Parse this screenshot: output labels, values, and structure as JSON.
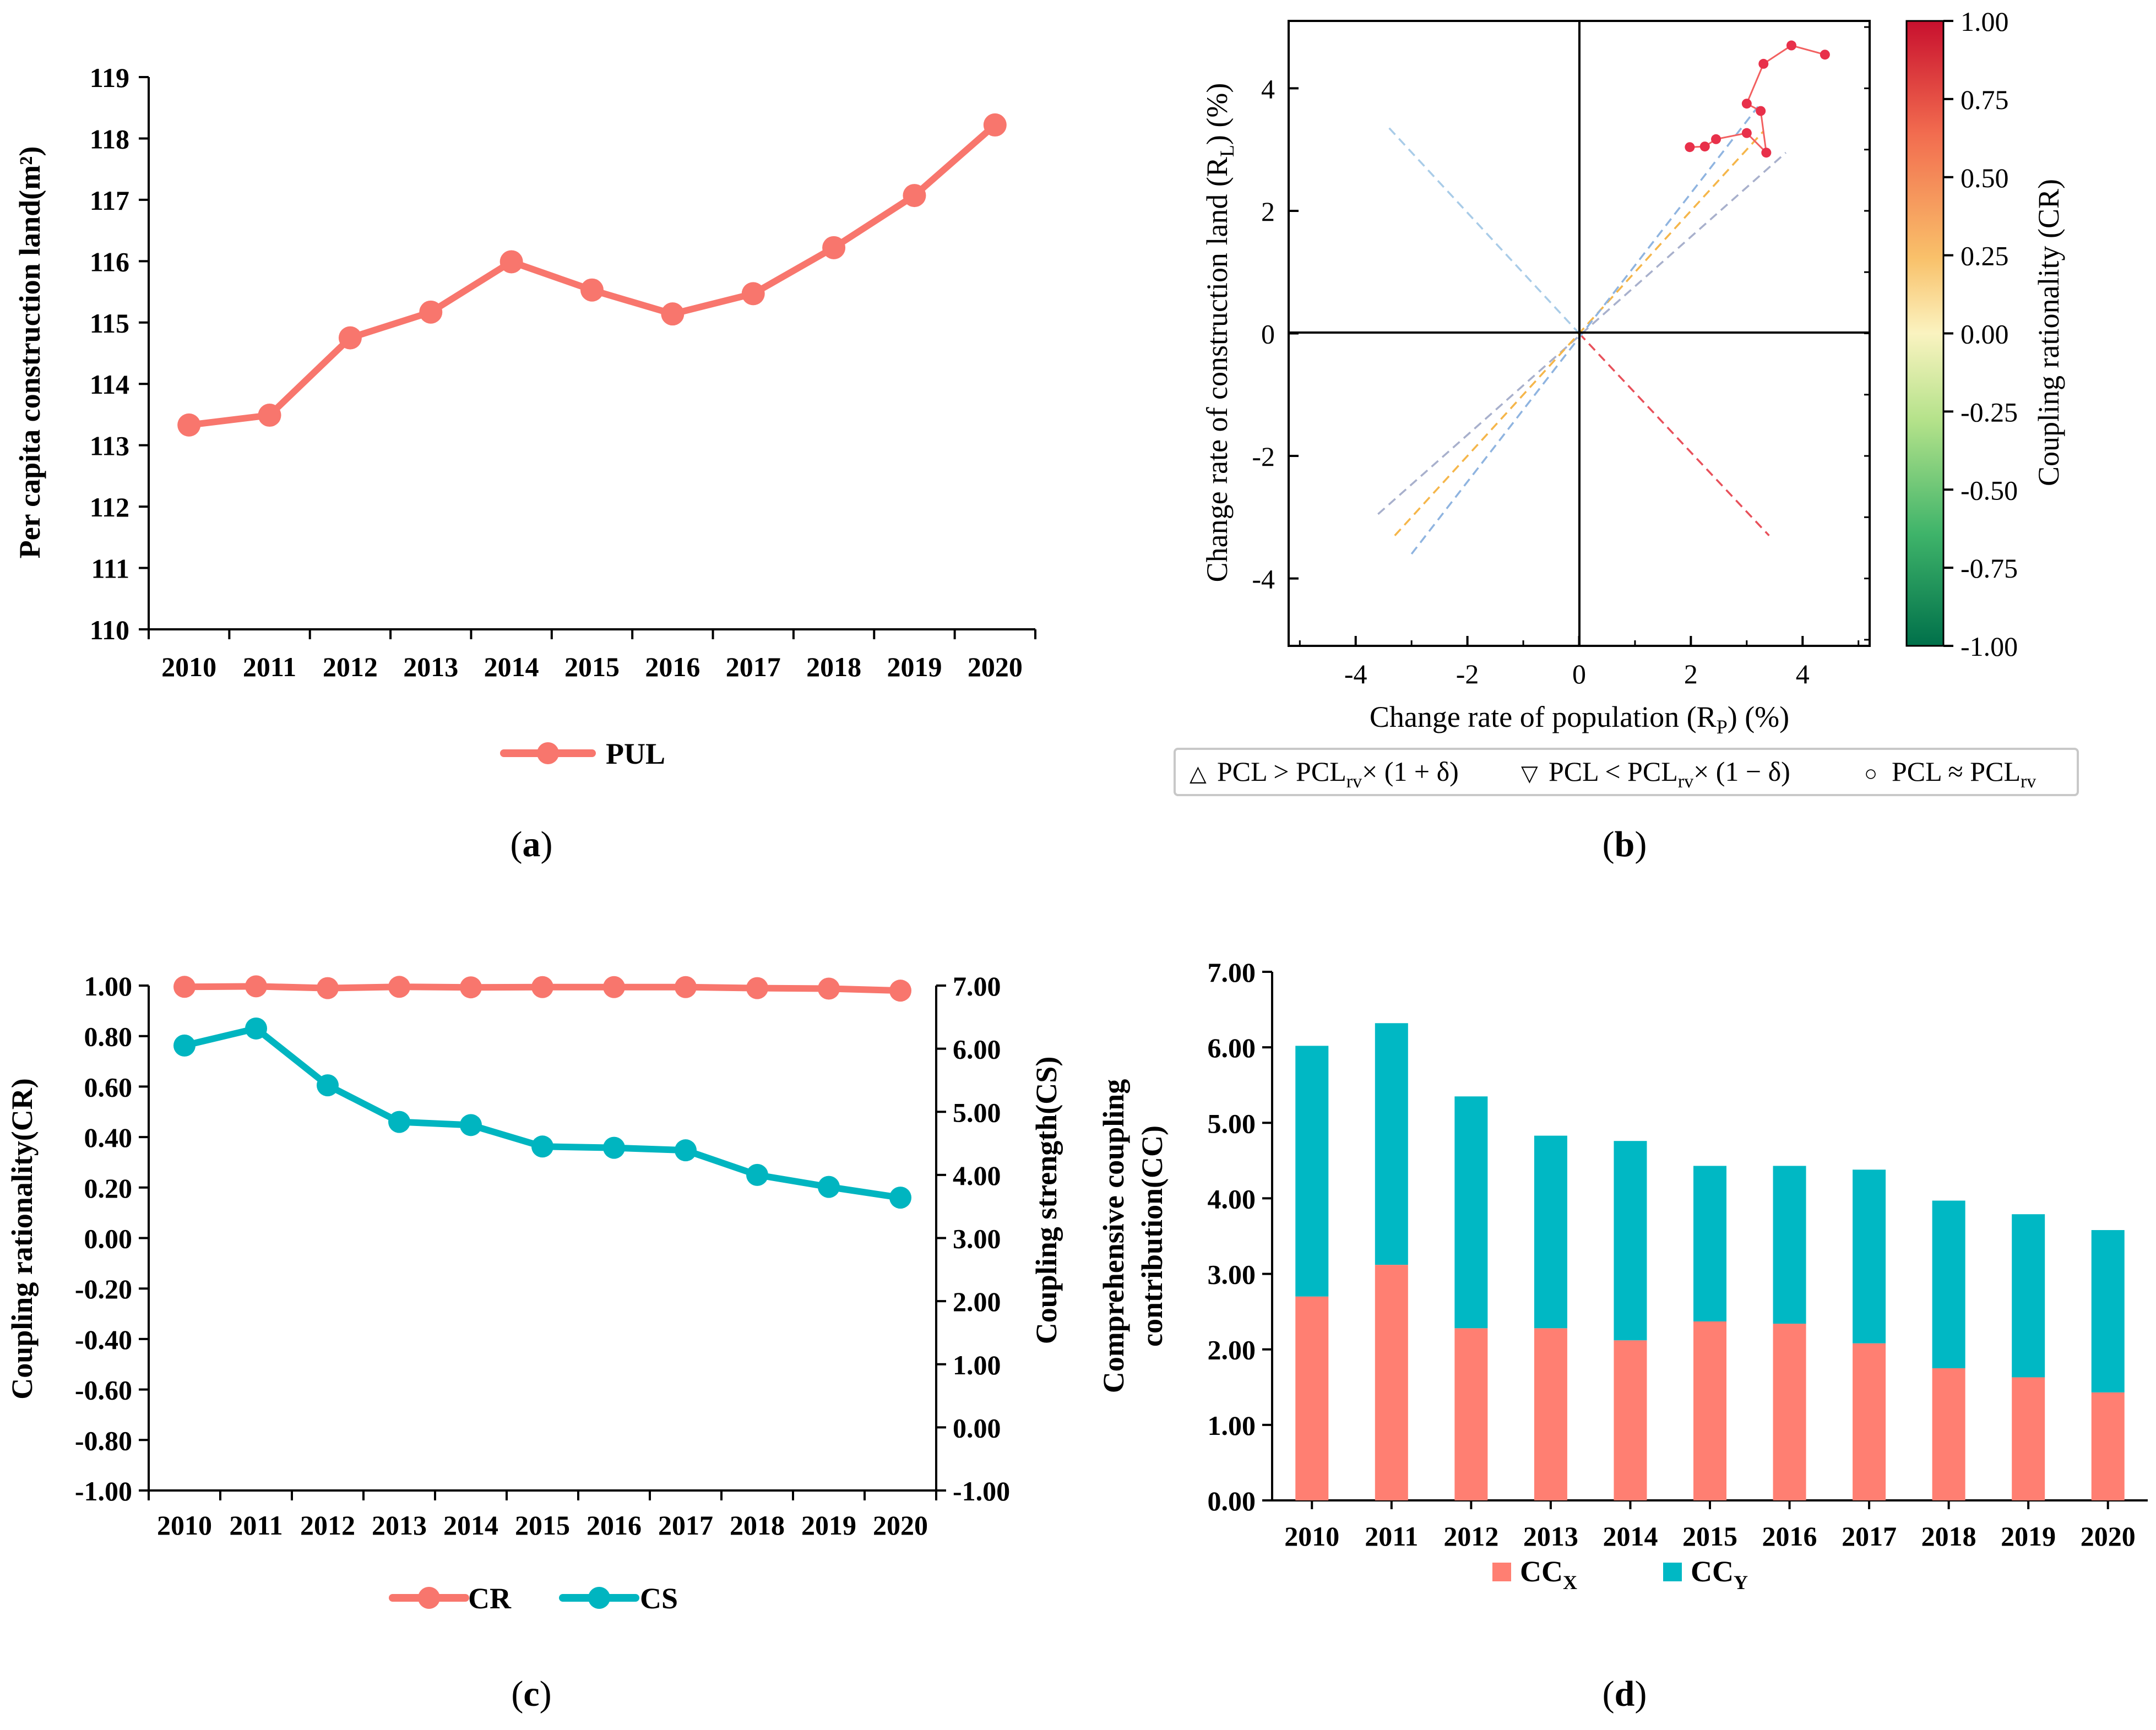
{
  "colors": {
    "cr": "#F8766D",
    "cs": "#00B5C0",
    "ccx": "#FF7F72",
    "ccy": "#00B8C4",
    "line_b": "#E8304A",
    "ref_blue": "#8FB4E0",
    "ref_orange": "#F5B64A",
    "ref_grey": "#A8B0CC",
    "ref_red": "#E8505A",
    "ref_lightblue": "#A9CCE8"
  },
  "chart_data": [
    {
      "id": "a",
      "type": "line",
      "panel_label": "(a)",
      "title": "",
      "xlabel": "",
      "ylabel": "Per capita construction land(m²)",
      "ylim": [
        110,
        119
      ],
      "yticks": [
        "110",
        "111",
        "112",
        "113",
        "114",
        "115",
        "116",
        "117",
        "118",
        "119"
      ],
      "categories": [
        "2010",
        "2011",
        "2012",
        "2013",
        "2014",
        "2015",
        "2016",
        "2017",
        "2018",
        "2019",
        "2020"
      ],
      "series": [
        {
          "name": "PUL",
          "values": [
            113.33,
            113.49,
            114.75,
            115.17,
            115.99,
            115.53,
            115.14,
            115.47,
            116.22,
            117.07,
            118.22
          ]
        }
      ],
      "legend": [
        "PUL"
      ]
    },
    {
      "id": "b",
      "type": "scatter",
      "panel_label": "(b)",
      "xlabel_parts": [
        "Change rate of population (R",
        "P",
        ") (%)"
      ],
      "ylabel_parts": [
        "Change rate of construction land (R",
        "L",
        ") (%)"
      ],
      "xlim": [
        -5.2,
        5.2
      ],
      "ylim": [
        -5.1,
        5.1
      ],
      "xticks": [
        "-4",
        "-2",
        "0",
        "2",
        "4"
      ],
      "yticks": [
        "-4",
        "-2",
        "0",
        "2",
        "4"
      ],
      "points": [
        {
          "x": 1.98,
          "y": 3.04
        },
        {
          "x": 2.25,
          "y": 3.05
        },
        {
          "x": 2.45,
          "y": 3.17
        },
        {
          "x": 3.0,
          "y": 3.27
        },
        {
          "x": 3.35,
          "y": 2.95
        },
        {
          "x": 3.25,
          "y": 3.63
        },
        {
          "x": 3.0,
          "y": 3.75
        },
        {
          "x": 3.3,
          "y": 4.4
        },
        {
          "x": 3.8,
          "y": 4.7
        },
        {
          "x": 4.4,
          "y": 4.55
        }
      ],
      "reference_lines": [
        {
          "color": "ref_lightblue",
          "from": [
            -3.4,
            3.35
          ],
          "to": [
            0,
            0
          ]
        },
        {
          "color": "ref_red",
          "from": [
            0,
            0
          ],
          "to": [
            3.4,
            -3.3
          ]
        },
        {
          "color": "ref_grey",
          "from": [
            -3.6,
            -2.95
          ],
          "to": [
            3.7,
            2.95
          ]
        },
        {
          "color": "ref_orange",
          "from": [
            -3.3,
            -3.3
          ],
          "to": [
            3.3,
            3.3
          ]
        },
        {
          "color": "ref_blue",
          "from": [
            -3.0,
            -3.6
          ],
          "to": [
            3.2,
            3.7
          ]
        }
      ],
      "colorbar": {
        "title": "Coupling rationality (CR)",
        "ticks": [
          "1.00",
          "0.75",
          "0.50",
          "0.25",
          "0.00",
          "-0.25",
          "-0.50",
          "-0.75",
          "-1.00"
        ]
      },
      "legend": [
        {
          "symbol": "△",
          "parts": [
            "PCL > PCL",
            "rv",
            "× (1 + δ)"
          ]
        },
        {
          "symbol": "▽",
          "parts": [
            "PCL < PCL",
            "rv",
            "× (1 − δ)"
          ]
        },
        {
          "symbol": "○",
          "parts": [
            "PCL ≈ PCL",
            "rv",
            ""
          ]
        }
      ]
    },
    {
      "id": "c",
      "type": "line",
      "panel_label": "(c)",
      "ylabel": "Coupling rationality(CR)",
      "ylabel_right": "Coupling strength(CS)",
      "ylim": [
        -1.0,
        1.0
      ],
      "ylim_right": [
        -1.0,
        7.0
      ],
      "yticks": [
        "1.00",
        "0.80",
        "0.60",
        "0.40",
        "0.20",
        "0.00",
        "-0.20",
        "-0.40",
        "-0.60",
        "-0.80",
        "-1.00"
      ],
      "yticks_right": [
        "7.00",
        "6.00",
        "5.00",
        "4.00",
        "3.00",
        "2.00",
        "1.00",
        "0.00",
        "-1.00"
      ],
      "categories": [
        "2010",
        "2011",
        "2012",
        "2013",
        "2014",
        "2015",
        "2016",
        "2017",
        "2018",
        "2019",
        "2020"
      ],
      "series": [
        {
          "name": "CR",
          "axis": "left",
          "values": [
            0.995,
            0.997,
            0.99,
            0.995,
            0.993,
            0.994,
            0.994,
            0.994,
            0.99,
            0.988,
            0.98
          ]
        },
        {
          "name": "CS",
          "axis": "right",
          "values": [
            6.05,
            6.32,
            5.42,
            4.84,
            4.79,
            4.45,
            4.43,
            4.39,
            4.0,
            3.81,
            3.64
          ]
        }
      ],
      "legend": [
        "CR",
        "CS"
      ]
    },
    {
      "id": "d",
      "type": "bar",
      "stacked": true,
      "panel_label": "(d)",
      "ylabel_lines": [
        "Comprehensive coupling",
        "contribution(CC)"
      ],
      "ylim": [
        0,
        7
      ],
      "yticks": [
        "0.00",
        "1.00",
        "2.00",
        "3.00",
        "4.00",
        "5.00",
        "6.00",
        "7.00"
      ],
      "categories": [
        "2010",
        "2011",
        "2012",
        "2013",
        "2014",
        "2015",
        "2016",
        "2017",
        "2018",
        "2019",
        "2020"
      ],
      "series": [
        {
          "name": "CCX",
          "label_main": "CC",
          "label_sub": "X",
          "values": [
            2.7,
            3.12,
            2.28,
            2.28,
            2.12,
            2.37,
            2.34,
            2.08,
            1.75,
            1.63,
            1.43
          ]
        },
        {
          "name": "CCY",
          "label_main": "CC",
          "label_sub": "Y",
          "values": [
            3.32,
            3.2,
            3.07,
            2.55,
            2.64,
            2.06,
            2.09,
            2.3,
            2.22,
            2.16,
            2.15
          ]
        }
      ]
    }
  ]
}
